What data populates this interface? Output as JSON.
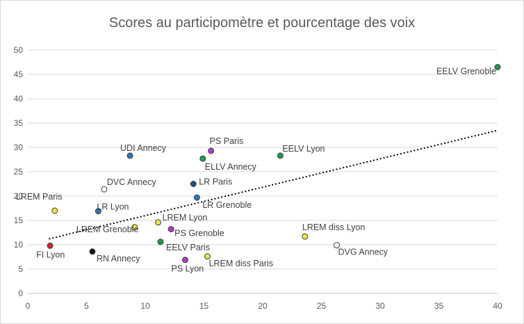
{
  "chart_data": {
    "type": "scatter",
    "title": "Scores au participomètre et pourcentage des voix",
    "xlabel": "",
    "ylabel": "",
    "xlim": [
      0,
      40
    ],
    "ylim": [
      0,
      50
    ],
    "xticks": [
      "0",
      "5",
      "10",
      "15",
      "20",
      "25",
      "30",
      "35",
      "40"
    ],
    "yticks": [
      "0",
      "5",
      "10",
      "15",
      "20",
      "25",
      "30",
      "35",
      "40",
      "45",
      "50"
    ],
    "grid": "horizontal",
    "legend": "none",
    "trendline": {
      "type": "linear",
      "style": "dotted",
      "color": "#000000",
      "start": [
        1.8,
        11.2
      ],
      "end": [
        40,
        33.5
      ]
    },
    "points": [
      {
        "label": "EELV Grenoble",
        "x": 40.0,
        "y": 46.5,
        "color": "#1e9a4a",
        "label_pos": "left"
      },
      {
        "label": "UDI Annecy",
        "x": 8.7,
        "y": 28.3,
        "color": "#2e75b6",
        "label_pos": "above"
      },
      {
        "label": "PS Paris",
        "x": 15.6,
        "y": 29.3,
        "color": "#b239c8",
        "label_pos": "above"
      },
      {
        "label": "ELLV Annecy",
        "x": 14.9,
        "y": 27.7,
        "color": "#1e9a4a",
        "label_pos": "below"
      },
      {
        "label": "EELV Lyon",
        "x": 21.5,
        "y": 28.3,
        "color": "#1e9a4a",
        "label_pos": "above"
      },
      {
        "label": "LR Paris",
        "x": 14.1,
        "y": 22.5,
        "color": "#1f4e79",
        "label_pos": "right"
      },
      {
        "label": "DVC Annecy",
        "x": 6.5,
        "y": 21.4,
        "color": "#ffffff",
        "label_pos": "above"
      },
      {
        "label": "LR Grenoble",
        "x": 14.4,
        "y": 19.7,
        "color": "#2e75b6",
        "label_pos": "below"
      },
      {
        "label": "LREM Paris",
        "x": 2.3,
        "y": 17.0,
        "color": "#e8e44a",
        "label_pos": "above"
      },
      {
        "label": "LR Lyon",
        "x": 6.0,
        "y": 16.9,
        "color": "#2e75b6",
        "label_pos": "above"
      },
      {
        "label": "LREM Lyon",
        "x": 11.1,
        "y": 14.6,
        "color": "#e8e44a",
        "label_pos": "above"
      },
      {
        "label": "LREM Grenoble",
        "x": 9.1,
        "y": 13.6,
        "color": "#e8e44a",
        "label_pos": "below"
      },
      {
        "label": "PS Grenoble",
        "x": 12.2,
        "y": 13.2,
        "color": "#b239c8",
        "label_pos": "below"
      },
      {
        "label": "LREM diss Lyon",
        "x": 23.6,
        "y": 11.7,
        "color": "#e8e44a",
        "label_pos": "above"
      },
      {
        "label": "EELV Paris",
        "x": 11.3,
        "y": 10.6,
        "color": "#1e9a4a",
        "label_pos": "below"
      },
      {
        "label": "DVG Annecy",
        "x": 26.3,
        "y": 9.9,
        "color": "#ffffff",
        "label_pos": "below"
      },
      {
        "label": "FI Lyon",
        "x": 1.9,
        "y": 9.8,
        "color": "#e02020",
        "label_pos": "below"
      },
      {
        "label": "RN Annecy",
        "x": 5.5,
        "y": 8.6,
        "color": "#111111",
        "label_pos": "below"
      },
      {
        "label": "LREM diss Paris",
        "x": 15.3,
        "y": 7.6,
        "color": "#e8e44a",
        "label_pos": "below"
      },
      {
        "label": "PS Lyon",
        "x": 13.4,
        "y": 6.9,
        "color": "#b239c8",
        "label_pos": "below"
      }
    ]
  }
}
